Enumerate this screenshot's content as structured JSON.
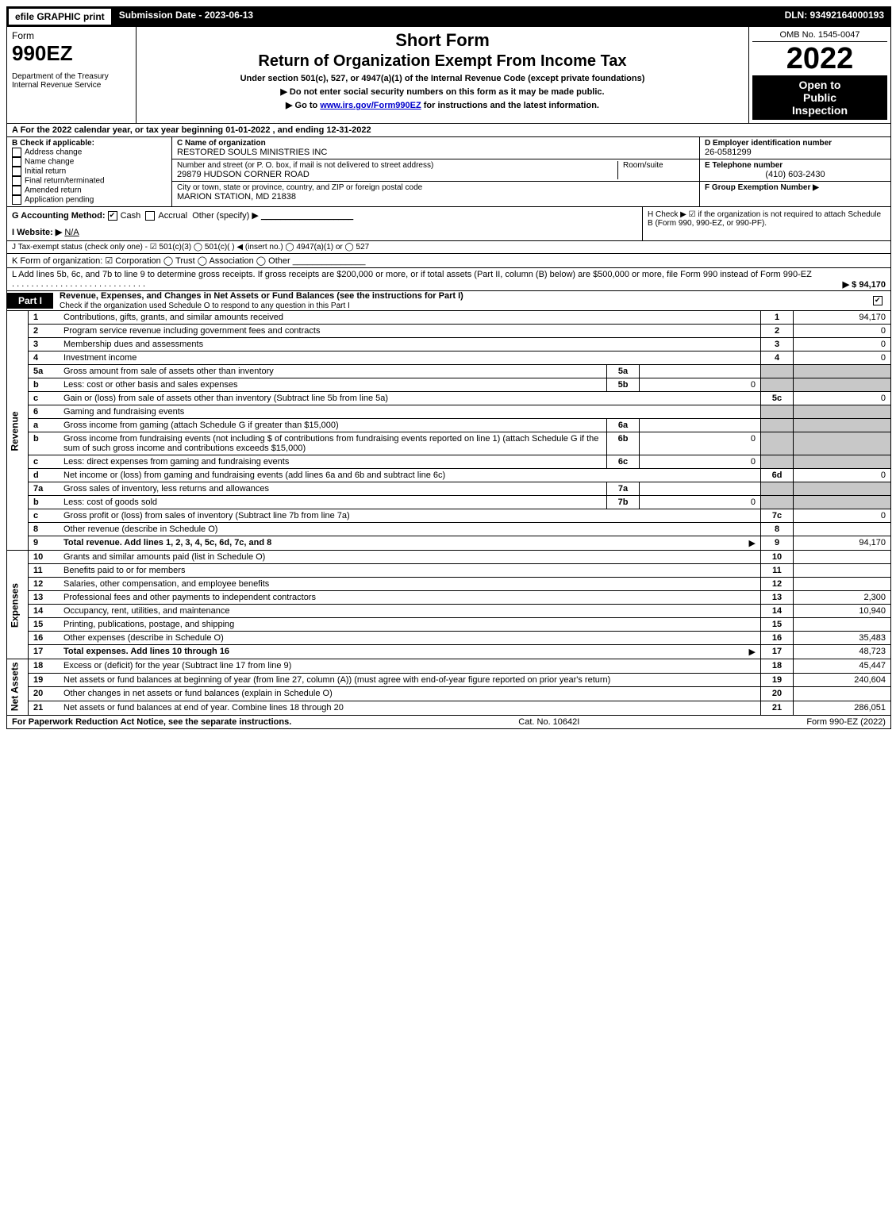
{
  "topbar": {
    "efile": "efile GRAPHIC print",
    "submission": "Submission Date - 2023-06-13",
    "dln": "DLN: 93492164000193"
  },
  "header": {
    "form_label": "Form",
    "form_no": "990EZ",
    "dept1": "Department of the Treasury",
    "dept2": "Internal Revenue Service",
    "title1": "Short Form",
    "title2": "Return of Organization Exempt From Income Tax",
    "subtitle": "Under section 501(c), 527, or 4947(a)(1) of the Internal Revenue Code (except private foundations)",
    "info1": "▶ Do not enter social security numbers on this form as it may be made public.",
    "info2_pre": "▶ Go to ",
    "info2_link": "www.irs.gov/Form990EZ",
    "info2_post": " for instructions and the latest information.",
    "omb": "OMB No. 1545-0047",
    "year": "2022",
    "open1": "Open to",
    "open2": "Public",
    "open3": "Inspection"
  },
  "lineA": "A  For the 2022 calendar year, or tax year beginning 01-01-2022 , and ending 12-31-2022",
  "sectionB": {
    "title": "B  Check if applicable:",
    "items": [
      "Address change",
      "Name change",
      "Initial return",
      "Final return/terminated",
      "Amended return",
      "Application pending"
    ]
  },
  "sectionC": {
    "c_label": "C Name of organization",
    "c_value": "RESTORED SOULS MINISTRIES INC",
    "addr_label": "Number and street (or P. O. box, if mail is not delivered to street address)",
    "room_label": "Room/suite",
    "addr_value": "29879 HUDSON CORNER ROAD",
    "city_label": "City or town, state or province, country, and ZIP or foreign postal code",
    "city_value": "MARION STATION, MD  21838"
  },
  "sectionDEF": {
    "d_label": "D Employer identification number",
    "d_value": "26-0581299",
    "e_label": "E Telephone number",
    "e_value": "(410) 603-2430",
    "f_label": "F Group Exemption Number  ▶"
  },
  "lineG": {
    "label": "G Accounting Method:",
    "cash": "Cash",
    "accrual": "Accrual",
    "other": "Other (specify) ▶",
    "blank": "___________________"
  },
  "lineH": "H  Check ▶  ☑  if the organization is not required to attach Schedule B (Form 990, 990-EZ, or 990-PF).",
  "lineI": {
    "label": "I Website: ▶",
    "value": "N/A"
  },
  "lineJ": "J Tax-exempt status (check only one) -  ☑ 501(c)(3)  ◯ 501(c)(  ) ◀ (insert no.)  ◯ 4947(a)(1) or  ◯ 527",
  "lineK": "K Form of organization:   ☑ Corporation   ◯ Trust   ◯ Association   ◯ Other  _______________",
  "lineL": {
    "text": "L Add lines 5b, 6c, and 7b to line 9 to determine gross receipts. If gross receipts are $200,000 or more, or if total assets (Part II, column (B) below) are $500,000 or more, file Form 990 instead of Form 990-EZ",
    "amount": "▶ $ 94,170"
  },
  "part1": {
    "label": "Part I",
    "title": "Revenue, Expenses, and Changes in Net Assets or Fund Balances (see the instructions for Part I)",
    "check_line": "Check if the organization used Schedule O to respond to any question in this Part I"
  },
  "sections": {
    "revenue": "Revenue",
    "expenses": "Expenses",
    "netassets": "Net Assets"
  },
  "rows": [
    {
      "n": "1",
      "d": "Contributions, gifts, grants, and similar amounts received",
      "rn": "1",
      "rv": "94,170",
      "sec": "rev"
    },
    {
      "n": "2",
      "d": "Program service revenue including government fees and contracts",
      "rn": "2",
      "rv": "0",
      "sec": "rev"
    },
    {
      "n": "3",
      "d": "Membership dues and assessments",
      "rn": "3",
      "rv": "0",
      "sec": "rev"
    },
    {
      "n": "4",
      "d": "Investment income",
      "rn": "4",
      "rv": "0",
      "sec": "rev"
    },
    {
      "n": "5a",
      "d": "Gross amount from sale of assets other than inventory",
      "mn": "5a",
      "mv": "",
      "shade_r": true,
      "sec": "rev"
    },
    {
      "n": "b",
      "d": "Less: cost or other basis and sales expenses",
      "mn": "5b",
      "mv": "0",
      "shade_r": true,
      "sec": "rev"
    },
    {
      "n": "c",
      "d": "Gain or (loss) from sale of assets other than inventory (Subtract line 5b from line 5a)",
      "rn": "5c",
      "rv": "0",
      "sec": "rev"
    },
    {
      "n": "6",
      "d": "Gaming and fundraising events",
      "shade_r": true,
      "sec": "rev"
    },
    {
      "n": "a",
      "d": "Gross income from gaming (attach Schedule G if greater than $15,000)",
      "mn": "6a",
      "mv": "",
      "shade_r": true,
      "sec": "rev"
    },
    {
      "n": "b",
      "d": "Gross income from fundraising events (not including $                    of contributions from fundraising events reported on line 1) (attach Schedule G if the sum of such gross income and contributions exceeds $15,000)",
      "mn": "6b",
      "mv": "0",
      "shade_r": true,
      "sec": "rev"
    },
    {
      "n": "c",
      "d": "Less: direct expenses from gaming and fundraising events",
      "mn": "6c",
      "mv": "0",
      "shade_r": true,
      "sec": "rev"
    },
    {
      "n": "d",
      "d": "Net income or (loss) from gaming and fundraising events (add lines 6a and 6b and subtract line 6c)",
      "rn": "6d",
      "rv": "0",
      "sec": "rev"
    },
    {
      "n": "7a",
      "d": "Gross sales of inventory, less returns and allowances",
      "mn": "7a",
      "mv": "",
      "shade_r": true,
      "sec": "rev"
    },
    {
      "n": "b",
      "d": "Less: cost of goods sold",
      "mn": "7b",
      "mv": "0",
      "shade_r": true,
      "sec": "rev"
    },
    {
      "n": "c",
      "d": "Gross profit or (loss) from sales of inventory (Subtract line 7b from line 7a)",
      "rn": "7c",
      "rv": "0",
      "sec": "rev"
    },
    {
      "n": "8",
      "d": "Other revenue (describe in Schedule O)",
      "rn": "8",
      "rv": "",
      "sec": "rev"
    },
    {
      "n": "9",
      "d": "Total revenue. Add lines 1, 2, 3, 4, 5c, 6d, 7c, and 8",
      "rn": "9",
      "rv": "94,170",
      "bold": true,
      "arrow": true,
      "sec": "rev"
    },
    {
      "n": "10",
      "d": "Grants and similar amounts paid (list in Schedule O)",
      "rn": "10",
      "rv": "",
      "sec": "exp"
    },
    {
      "n": "11",
      "d": "Benefits paid to or for members",
      "rn": "11",
      "rv": "",
      "sec": "exp"
    },
    {
      "n": "12",
      "d": "Salaries, other compensation, and employee benefits",
      "rn": "12",
      "rv": "",
      "sec": "exp"
    },
    {
      "n": "13",
      "d": "Professional fees and other payments to independent contractors",
      "rn": "13",
      "rv": "2,300",
      "sec": "exp"
    },
    {
      "n": "14",
      "d": "Occupancy, rent, utilities, and maintenance",
      "rn": "14",
      "rv": "10,940",
      "sec": "exp"
    },
    {
      "n": "15",
      "d": "Printing, publications, postage, and shipping",
      "rn": "15",
      "rv": "",
      "sec": "exp"
    },
    {
      "n": "16",
      "d": "Other expenses (describe in Schedule O)",
      "rn": "16",
      "rv": "35,483",
      "sec": "exp"
    },
    {
      "n": "17",
      "d": "Total expenses. Add lines 10 through 16",
      "rn": "17",
      "rv": "48,723",
      "bold": true,
      "arrow": true,
      "sec": "exp"
    },
    {
      "n": "18",
      "d": "Excess or (deficit) for the year (Subtract line 17 from line 9)",
      "rn": "18",
      "rv": "45,447",
      "sec": "net"
    },
    {
      "n": "19",
      "d": "Net assets or fund balances at beginning of year (from line 27, column (A)) (must agree with end-of-year figure reported on prior year's return)",
      "rn": "19",
      "rv": "240,604",
      "sec": "net"
    },
    {
      "n": "20",
      "d": "Other changes in net assets or fund balances (explain in Schedule O)",
      "rn": "20",
      "rv": "",
      "sec": "net"
    },
    {
      "n": "21",
      "d": "Net assets or fund balances at end of year. Combine lines 18 through 20",
      "rn": "21",
      "rv": "286,051",
      "sec": "net"
    }
  ],
  "footer": {
    "left": "For Paperwork Reduction Act Notice, see the separate instructions.",
    "mid": "Cat. No. 10642I",
    "right": "Form 990-EZ (2022)"
  }
}
